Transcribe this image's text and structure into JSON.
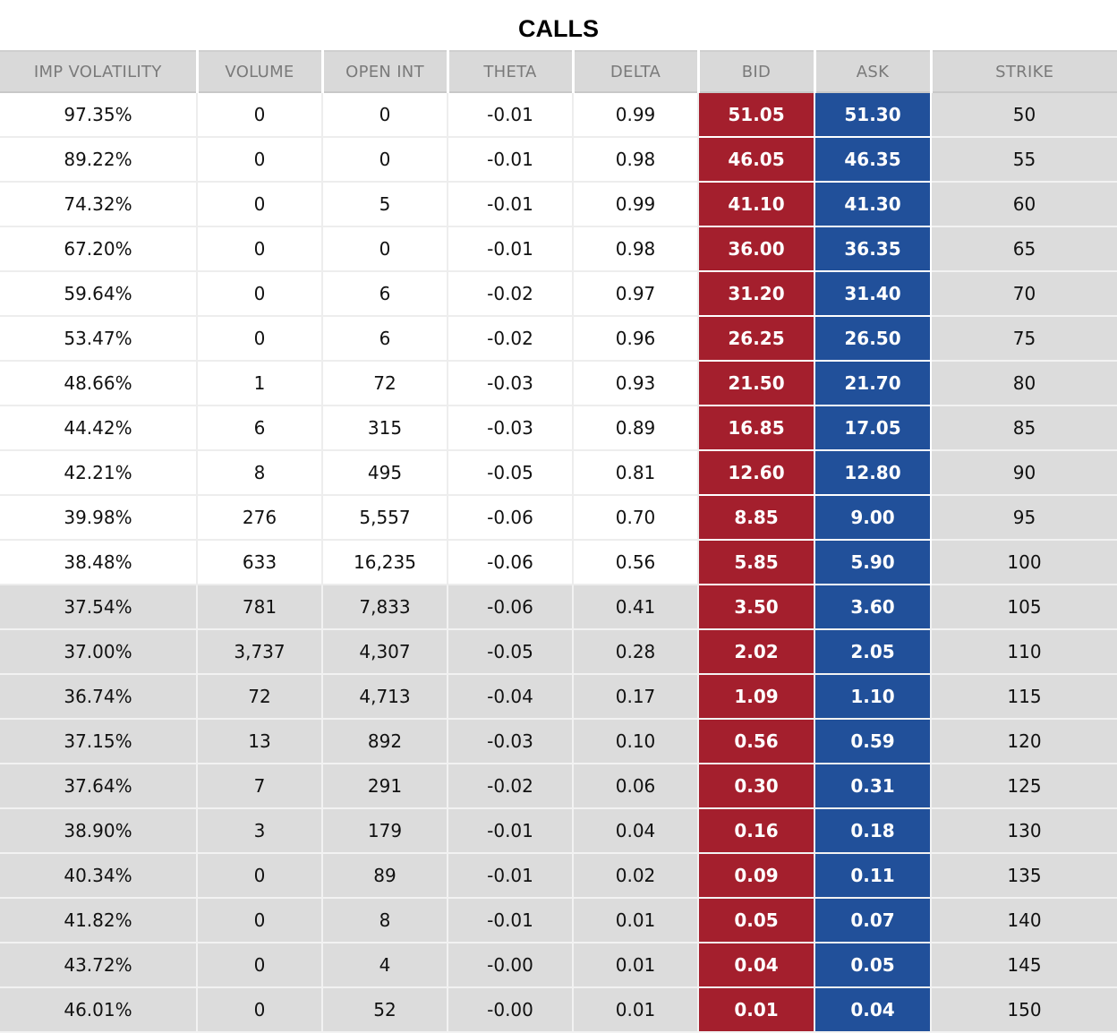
{
  "title": "CALLS",
  "colors": {
    "bid": "#a41f2d",
    "ask": "#21509a",
    "header_bg": "#d9d9d9",
    "otm_bg": "#dcdcdc"
  },
  "columns": [
    "IMP VOLATILITY",
    "VOLUME",
    "OPEN INT",
    "THETA",
    "DELTA",
    "BID",
    "ASK",
    "STRIKE"
  ],
  "rows": [
    {
      "iv": "97.35%",
      "volume": "0",
      "open_int": "0",
      "theta": "-0.01",
      "delta": "0.99",
      "bid": "51.05",
      "ask": "51.30",
      "strike": "50",
      "itm": true
    },
    {
      "iv": "89.22%",
      "volume": "0",
      "open_int": "0",
      "theta": "-0.01",
      "delta": "0.98",
      "bid": "46.05",
      "ask": "46.35",
      "strike": "55",
      "itm": true
    },
    {
      "iv": "74.32%",
      "volume": "0",
      "open_int": "5",
      "theta": "-0.01",
      "delta": "0.99",
      "bid": "41.10",
      "ask": "41.30",
      "strike": "60",
      "itm": true
    },
    {
      "iv": "67.20%",
      "volume": "0",
      "open_int": "0",
      "theta": "-0.01",
      "delta": "0.98",
      "bid": "36.00",
      "ask": "36.35",
      "strike": "65",
      "itm": true
    },
    {
      "iv": "59.64%",
      "volume": "0",
      "open_int": "6",
      "theta": "-0.02",
      "delta": "0.97",
      "bid": "31.20",
      "ask": "31.40",
      "strike": "70",
      "itm": true
    },
    {
      "iv": "53.47%",
      "volume": "0",
      "open_int": "6",
      "theta": "-0.02",
      "delta": "0.96",
      "bid": "26.25",
      "ask": "26.50",
      "strike": "75",
      "itm": true
    },
    {
      "iv": "48.66%",
      "volume": "1",
      "open_int": "72",
      "theta": "-0.03",
      "delta": "0.93",
      "bid": "21.50",
      "ask": "21.70",
      "strike": "80",
      "itm": true
    },
    {
      "iv": "44.42%",
      "volume": "6",
      "open_int": "315",
      "theta": "-0.03",
      "delta": "0.89",
      "bid": "16.85",
      "ask": "17.05",
      "strike": "85",
      "itm": true
    },
    {
      "iv": "42.21%",
      "volume": "8",
      "open_int": "495",
      "theta": "-0.05",
      "delta": "0.81",
      "bid": "12.60",
      "ask": "12.80",
      "strike": "90",
      "itm": true
    },
    {
      "iv": "39.98%",
      "volume": "276",
      "open_int": "5,557",
      "theta": "-0.06",
      "delta": "0.70",
      "bid": "8.85",
      "ask": "9.00",
      "strike": "95",
      "itm": true
    },
    {
      "iv": "38.48%",
      "volume": "633",
      "open_int": "16,235",
      "theta": "-0.06",
      "delta": "0.56",
      "bid": "5.85",
      "ask": "5.90",
      "strike": "100",
      "itm": true
    },
    {
      "iv": "37.54%",
      "volume": "781",
      "open_int": "7,833",
      "theta": "-0.06",
      "delta": "0.41",
      "bid": "3.50",
      "ask": "3.60",
      "strike": "105",
      "itm": false
    },
    {
      "iv": "37.00%",
      "volume": "3,737",
      "open_int": "4,307",
      "theta": "-0.05",
      "delta": "0.28",
      "bid": "2.02",
      "ask": "2.05",
      "strike": "110",
      "itm": false
    },
    {
      "iv": "36.74%",
      "volume": "72",
      "open_int": "4,713",
      "theta": "-0.04",
      "delta": "0.17",
      "bid": "1.09",
      "ask": "1.10",
      "strike": "115",
      "itm": false
    },
    {
      "iv": "37.15%",
      "volume": "13",
      "open_int": "892",
      "theta": "-0.03",
      "delta": "0.10",
      "bid": "0.56",
      "ask": "0.59",
      "strike": "120",
      "itm": false
    },
    {
      "iv": "37.64%",
      "volume": "7",
      "open_int": "291",
      "theta": "-0.02",
      "delta": "0.06",
      "bid": "0.30",
      "ask": "0.31",
      "strike": "125",
      "itm": false
    },
    {
      "iv": "38.90%",
      "volume": "3",
      "open_int": "179",
      "theta": "-0.01",
      "delta": "0.04",
      "bid": "0.16",
      "ask": "0.18",
      "strike": "130",
      "itm": false
    },
    {
      "iv": "40.34%",
      "volume": "0",
      "open_int": "89",
      "theta": "-0.01",
      "delta": "0.02",
      "bid": "0.09",
      "ask": "0.11",
      "strike": "135",
      "itm": false
    },
    {
      "iv": "41.82%",
      "volume": "0",
      "open_int": "8",
      "theta": "-0.01",
      "delta": "0.01",
      "bid": "0.05",
      "ask": "0.07",
      "strike": "140",
      "itm": false
    },
    {
      "iv": "43.72%",
      "volume": "0",
      "open_int": "4",
      "theta": "-0.00",
      "delta": "0.01",
      "bid": "0.04",
      "ask": "0.05",
      "strike": "145",
      "itm": false
    },
    {
      "iv": "46.01%",
      "volume": "0",
      "open_int": "52",
      "theta": "-0.00",
      "delta": "0.01",
      "bid": "0.01",
      "ask": "0.04",
      "strike": "150",
      "itm": false
    }
  ]
}
